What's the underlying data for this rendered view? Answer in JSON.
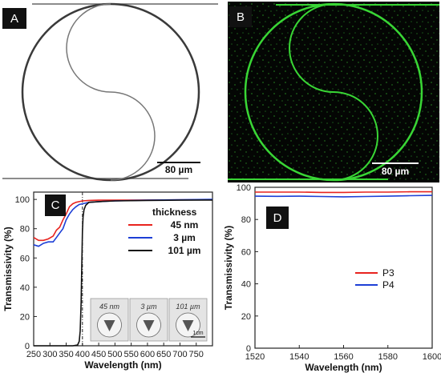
{
  "panels": {
    "a": {
      "label": "A",
      "scale": "80 µm"
    },
    "b": {
      "label": "B",
      "scale": "80 µm",
      "color": "#39d635"
    },
    "c": {
      "label": "C"
    },
    "d": {
      "label": "D"
    }
  },
  "chart_data": [
    {
      "type": "line",
      "xlabel": "Wavelength (nm)",
      "ylabel": "Transmissivity (%)",
      "xlim": [
        250,
        800
      ],
      "ylim": [
        0,
        105
      ],
      "xticks": [
        250,
        300,
        350,
        400,
        450,
        500,
        550,
        600,
        650,
        700,
        750
      ],
      "yticks": [
        0,
        20,
        40,
        60,
        80,
        100
      ],
      "legend_title": "thickness",
      "legend_position": "top-right",
      "vline": 400,
      "series": [
        {
          "name": "45 nm",
          "color": "#e8231e",
          "x": [
            250,
            265,
            280,
            295,
            310,
            320,
            330,
            340,
            350,
            360,
            370,
            380,
            390,
            400,
            420,
            450,
            500,
            600,
            700,
            800
          ],
          "y": [
            74,
            72,
            72,
            73,
            75,
            79,
            81,
            86,
            90,
            95,
            97,
            98,
            98.5,
            99,
            99.3,
            99.5,
            99.5,
            99.6,
            99.7,
            99.8
          ]
        },
        {
          "name": "3 µm",
          "color": "#1d3fd6",
          "x": [
            250,
            265,
            280,
            295,
            310,
            320,
            330,
            340,
            350,
            360,
            370,
            380,
            390,
            400,
            420,
            450,
            500,
            600,
            700,
            800
          ],
          "y": [
            69,
            68,
            70,
            71,
            71,
            74,
            77,
            80,
            86,
            90,
            93,
            95,
            96.5,
            97,
            98,
            98.5,
            99,
            99.5,
            99.8,
            100
          ]
        },
        {
          "name": "101 µm",
          "color": "#111111",
          "x": [
            250,
            300,
            370,
            385,
            390,
            393,
            396,
            398,
            400,
            402,
            405,
            410,
            420,
            450,
            500,
            600,
            700,
            800
          ],
          "y": [
            0,
            0,
            0,
            0.5,
            3,
            10,
            30,
            55,
            78,
            88,
            93,
            96,
            98,
            98.5,
            99,
            99.3,
            99.5,
            99.6
          ]
        }
      ],
      "inset_labels": [
        "45 nm",
        "3 µm",
        "101 µm"
      ],
      "inset_scale": "1cm"
    },
    {
      "type": "line",
      "xlabel": "Wavelength (nm)",
      "ylabel": "Transmissivity (%)",
      "xlim": [
        1520,
        1600
      ],
      "ylim": [
        0,
        100
      ],
      "xticks": [
        1520,
        1540,
        1560,
        1580,
        1600
      ],
      "yticks": [
        0,
        20,
        40,
        60,
        80,
        100
      ],
      "legend_position": "center-right",
      "series": [
        {
          "name": "P3",
          "color": "#e8231e",
          "x": [
            1520,
            1530,
            1540,
            1550,
            1560,
            1570,
            1580,
            1590,
            1600
          ],
          "y": [
            97,
            97,
            97,
            96.8,
            96.8,
            97,
            97,
            97.2,
            97.2
          ]
        },
        {
          "name": "P4",
          "color": "#1d3fd6",
          "x": [
            1520,
            1530,
            1540,
            1550,
            1560,
            1570,
            1580,
            1590,
            1600
          ],
          "y": [
            94.5,
            94.4,
            94.5,
            94.3,
            94.1,
            94.3,
            94.5,
            94.8,
            95
          ]
        }
      ]
    }
  ]
}
